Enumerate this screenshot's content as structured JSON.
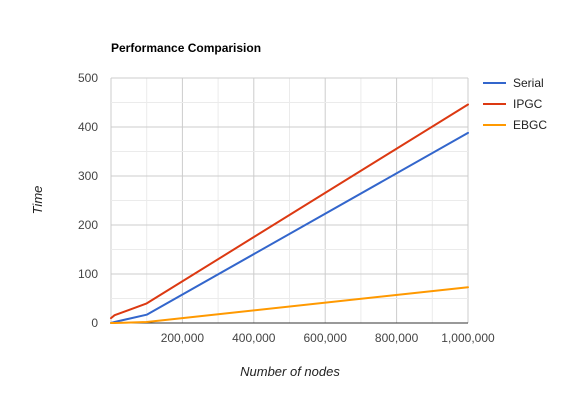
{
  "chart_data": {
    "type": "line",
    "title": "Performance Comparision",
    "xlabel": "Number of nodes",
    "ylabel": "Time",
    "xlim": [
      0,
      1000000
    ],
    "ylim": [
      0,
      500
    ],
    "x_ticks": [
      {
        "value": 200000,
        "label": "200,000"
      },
      {
        "value": 400000,
        "label": "400,000"
      },
      {
        "value": 600000,
        "label": "600,000"
      },
      {
        "value": 800000,
        "label": "800,000"
      },
      {
        "value": 1000000,
        "label": "1,000,000"
      }
    ],
    "y_ticks": [
      {
        "value": 0,
        "label": "0"
      },
      {
        "value": 100,
        "label": "100"
      },
      {
        "value": 200,
        "label": "200"
      },
      {
        "value": 300,
        "label": "300"
      },
      {
        "value": 400,
        "label": "400"
      },
      {
        "value": 500,
        "label": "500"
      }
    ],
    "grid": true,
    "legend_position": "right",
    "x": [
      0,
      10000,
      100000,
      1000000
    ],
    "series": [
      {
        "name": "Serial",
        "color": "#3366cc",
        "values": [
          0,
          2,
          17,
          388
        ]
      },
      {
        "name": "IPGC",
        "color": "#dc3912",
        "values": [
          10,
          16,
          40,
          446
        ]
      },
      {
        "name": "EBGC",
        "color": "#ff9900",
        "values": [
          0,
          0,
          2,
          73
        ]
      }
    ]
  }
}
